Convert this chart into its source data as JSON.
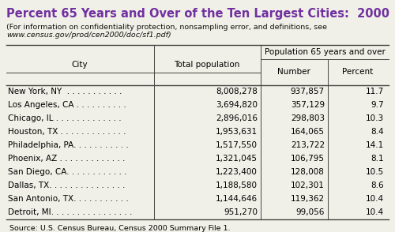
{
  "title": "Percent 65 Years and Over of the Ten Largest Cities:  2000",
  "title_color": "#7030A0",
  "subtitle_line1": "(For information on confidentiality protection, nonsampling error, and definitions, see",
  "subtitle_line2": "www.census.gov/prod/cen2000/doc/sf1.pdf)",
  "subheader": "Population 65 years and over",
  "source": "Source: U.S. Census Bureau, Census 2000 Summary File 1.",
  "city_dots": [
    "New York, NY  . . . . . . . . . . .",
    "Los Angeles, CA . . . . . . . . . .",
    "Chicago, IL . . . . . . . . . . . . .",
    "Houston, TX . . . . . . . . . . . . .",
    "Philadelphia, PA. . . . . . . . . . .",
    "Phoenix, AZ . . . . . . . . . . . . .",
    "San Diego, CA. . . . . . . . . . . .",
    "Dallas, TX. . . . . . . . . . . . . . .",
    "San Antonio, TX. . . . . . . . . . .",
    "Detroit, MI. . . . . . . . . . . . . . . ."
  ],
  "total_pop": [
    "8,008,278",
    "3,694,820",
    "2,896,016",
    "1,953,631",
    "1,517,550",
    "1,321,045",
    "1,223,400",
    "1,188,580",
    "1,144,646",
    "951,270"
  ],
  "number": [
    "937,857",
    "357,129",
    "298,803",
    "164,065",
    "213,722",
    "106,795",
    "128,008",
    "102,301",
    "119,362",
    "99,056"
  ],
  "percent": [
    "11.7",
    "9.7",
    "10.3",
    "8.4",
    "14.1",
    "8.1",
    "10.5",
    "8.6",
    "10.4",
    "10.4"
  ],
  "bg_color": "#f0f0e8",
  "font_size": 7.5,
  "title_font_size": 10.5,
  "subtitle_font_size": 6.8,
  "source_font_size": 6.8
}
